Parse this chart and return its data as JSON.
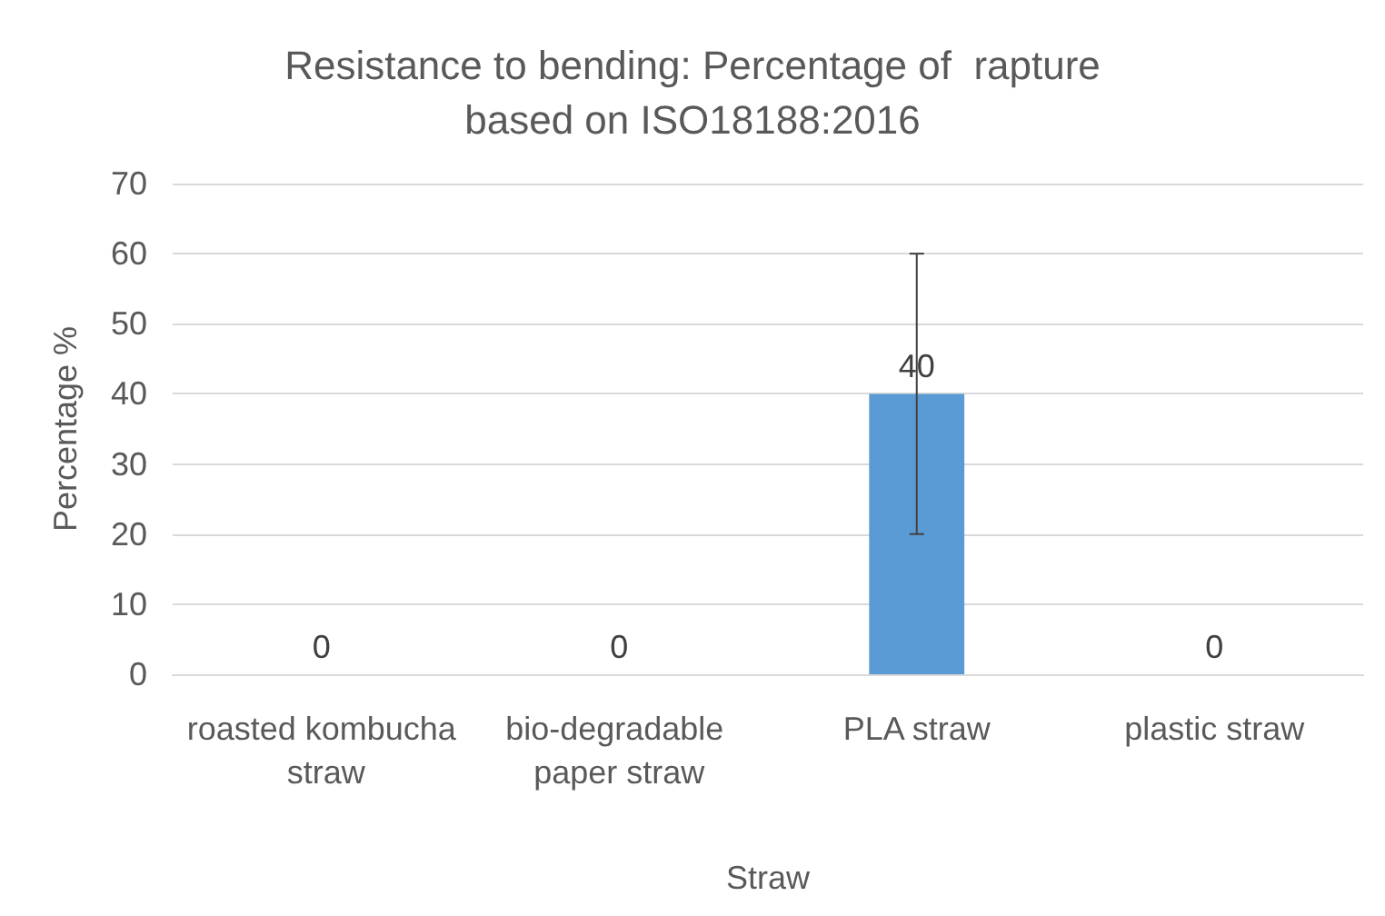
{
  "chart_data": {
    "type": "bar",
    "title": "Resistance to bending: Percentage of  rapture\nbased on ISO18188:2016",
    "xlabel": "Straw",
    "ylabel": "Percentage %",
    "categories": [
      "roasted kombucha straw",
      "bio-degradable paper straw",
      "PLA straw",
      "plastic straw"
    ],
    "values": [
      0,
      0,
      40,
      0
    ],
    "errors": [
      null,
      null,
      20,
      null
    ],
    "color": "#5b9bd5",
    "ylim": [
      0,
      70
    ],
    "yticks": [
      0,
      10,
      20,
      30,
      40,
      50,
      60,
      70
    ],
    "grid": "y",
    "data_labels": true
  }
}
